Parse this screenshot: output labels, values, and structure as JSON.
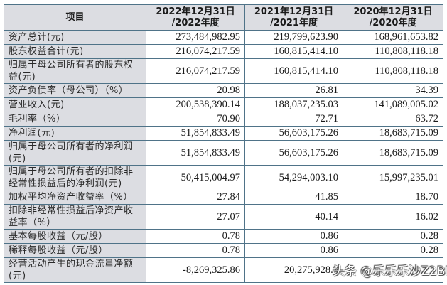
{
  "table": {
    "headers": [
      {
        "line1": "项目",
        "line2": ""
      },
      {
        "line1": "2022年12月31日",
        "line2": "/2022年度"
      },
      {
        "line1": "2021年12月31日",
        "line2": "/2021年度"
      },
      {
        "line1": "2020年12月31日",
        "line2": "/2020年度"
      }
    ],
    "rows": [
      {
        "label": "资产总计(元)",
        "values": [
          "273,484,982.95",
          "219,799,623.90",
          "168,961,653.82"
        ],
        "tall": false
      },
      {
        "label": "股东权益合计(元)",
        "values": [
          "216,074,217.59",
          "160,815,414.10",
          "110,808,118.18"
        ],
        "tall": false
      },
      {
        "label": "归属于母公司所有者的股东权益(元)",
        "values": [
          "216,074,217.59",
          "160,815,414.10",
          "110,808,118.18"
        ],
        "tall": true
      },
      {
        "label": "资产负债率（母公司）（%）",
        "values": [
          "20.98",
          "26.81",
          "34.39"
        ],
        "tall": false
      },
      {
        "label": "营业收入(元)",
        "values": [
          "200,538,390.14",
          "188,037,235.03",
          "141,089,005.02"
        ],
        "tall": false
      },
      {
        "label": "毛利率（%）",
        "values": [
          "70.90",
          "72.71",
          "63.72"
        ],
        "tall": false
      },
      {
        "label": "净利润(元)",
        "values": [
          "51,854,833.49",
          "56,603,175.26",
          "18,683,715.09"
        ],
        "tall": false
      },
      {
        "label": "归属于母公司所有者的净利润(元)",
        "values": [
          "51,854,833.49",
          "56,603,175.26",
          "18,683,715.09"
        ],
        "tall": true
      },
      {
        "label": "归属于母公司所有者的扣除非经常性损益后的净利润(元)",
        "values": [
          "50,415,004.97",
          "54,294,003.10",
          "15,997,235.01"
        ],
        "tall": true
      },
      {
        "label": "加权平均净资产收益率（%）",
        "values": [
          "27.84",
          "41.85",
          "18.70"
        ],
        "tall": false
      },
      {
        "label": "扣除非经常性损益后净资产收益率（%）",
        "values": [
          "27.07",
          "40.14",
          "16.02"
        ],
        "tall": true
      },
      {
        "label": "基本每股收益（元/股）",
        "values": [
          "0.78",
          "0.86",
          "0.28"
        ],
        "tall": false
      },
      {
        "label": "稀释每股收益（元/股）",
        "values": [
          "0.78",
          "0.86",
          "0.28"
        ],
        "tall": false
      },
      {
        "label": "经营活动产生的现金流量净额(元)",
        "values": [
          "-8,269,325.86",
          "20,275,928.7",
          ""
        ],
        "tall": true
      }
    ]
  },
  "watermark": "头条 @乐乐乐沙Z2BL",
  "colors": {
    "label_bg": "#dcdde2",
    "border": "#4f7388",
    "value_bg": "#ffffff"
  }
}
